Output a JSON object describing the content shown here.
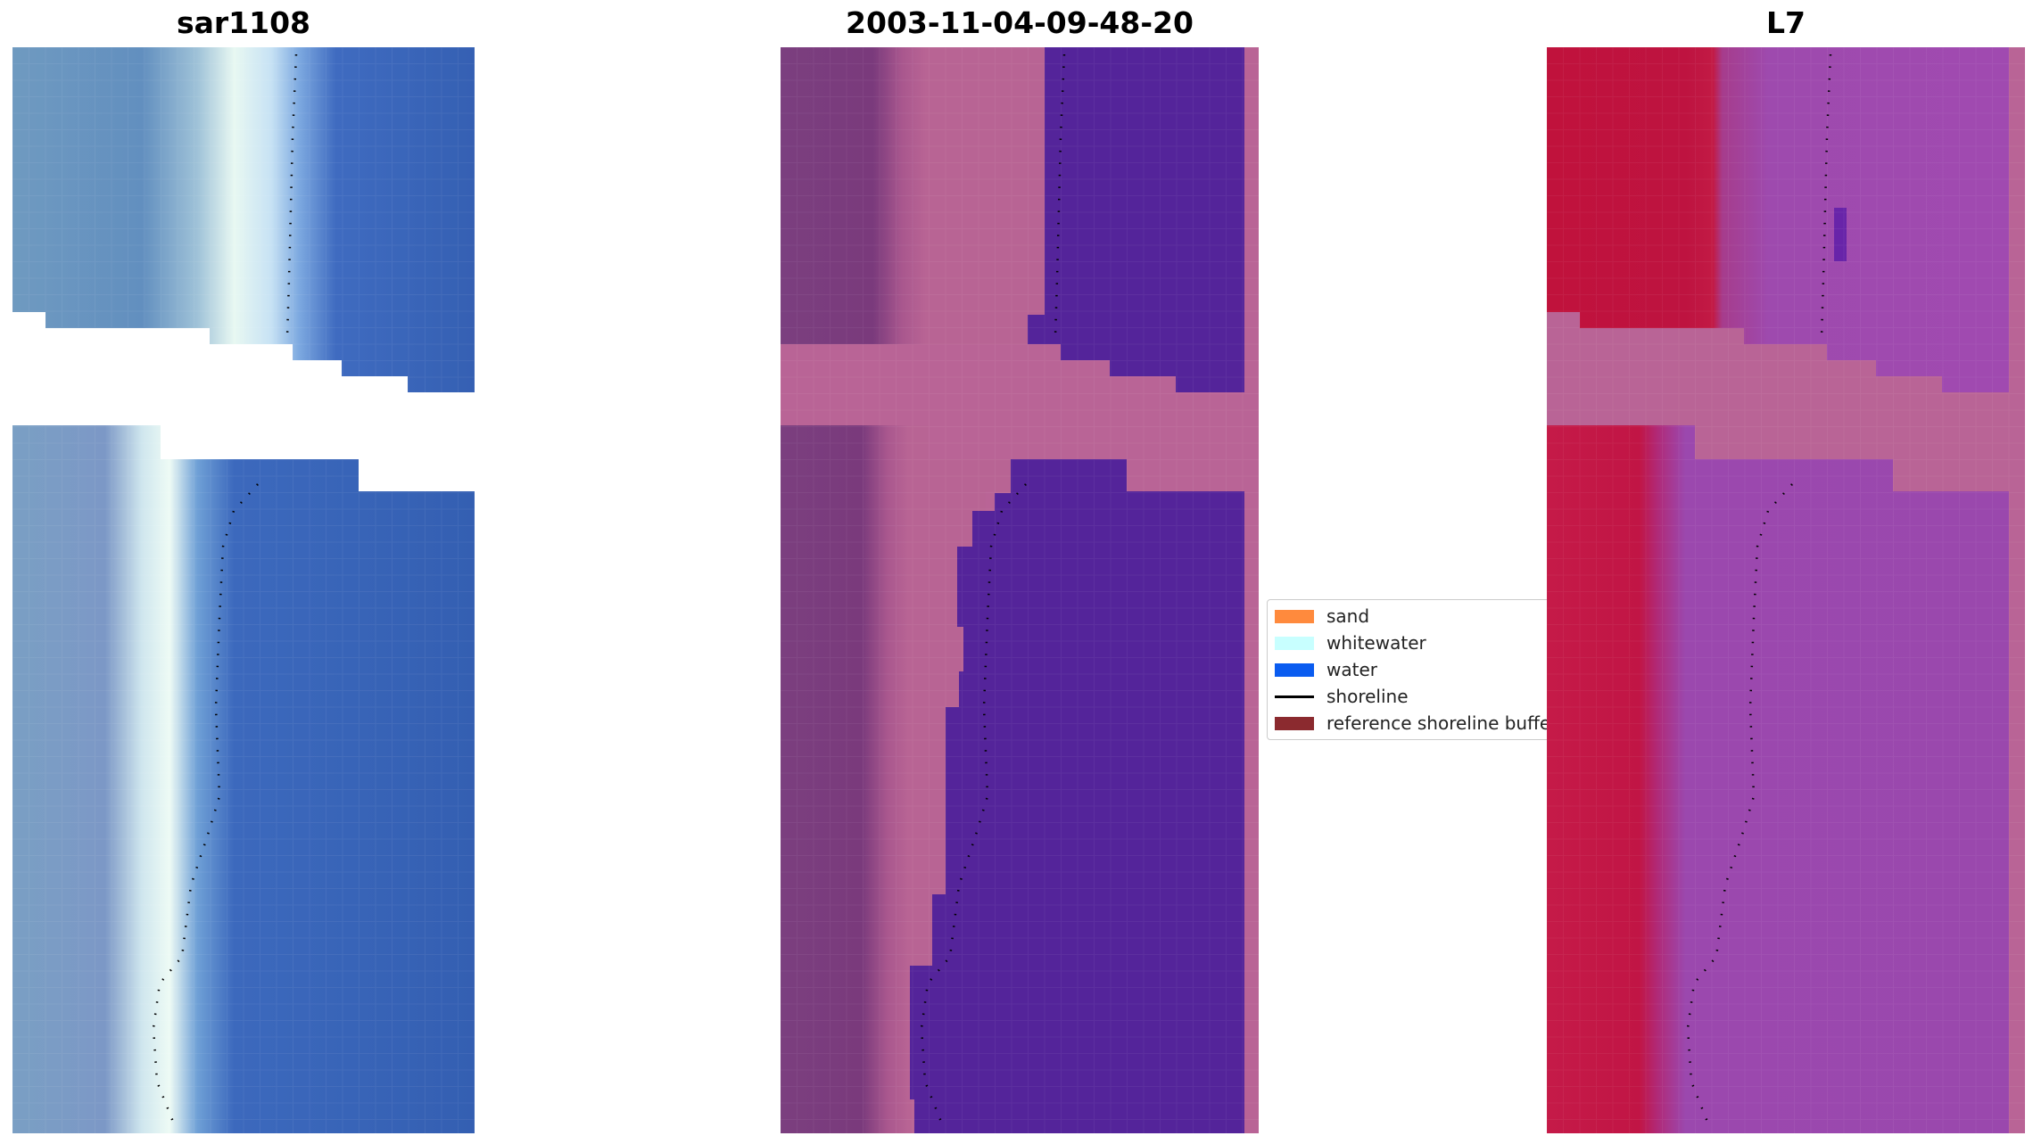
{
  "titles": {
    "left": "sar1108",
    "middle": "2003-11-04-09-48-20",
    "right": "L7"
  },
  "legend": {
    "items": [
      {
        "label": "sand",
        "color": "#ff8a3d",
        "kind": "patch"
      },
      {
        "label": "whitewater",
        "color": "#c8ffff",
        "kind": "patch"
      },
      {
        "label": "water",
        "color": "#0a5cf0",
        "kind": "patch"
      },
      {
        "label": "shoreline",
        "color": "#000000",
        "kind": "line"
      },
      {
        "label": "reference shoreline buffer",
        "color": "#8b2a2f",
        "kind": "patch"
      }
    ]
  },
  "colors": {
    "rgb_ocean": "#3a63b0",
    "rgb_beach": "#dff4f0",
    "rgb_land": "#6f99c2",
    "class_water": "#54249a",
    "class_land": "#7a3d7e",
    "class_mask": "#b96496",
    "ndwi_land": "#c0123c",
    "ndwi_water": "#9a4ab0",
    "ndwi_mask": "#b96496"
  }
}
